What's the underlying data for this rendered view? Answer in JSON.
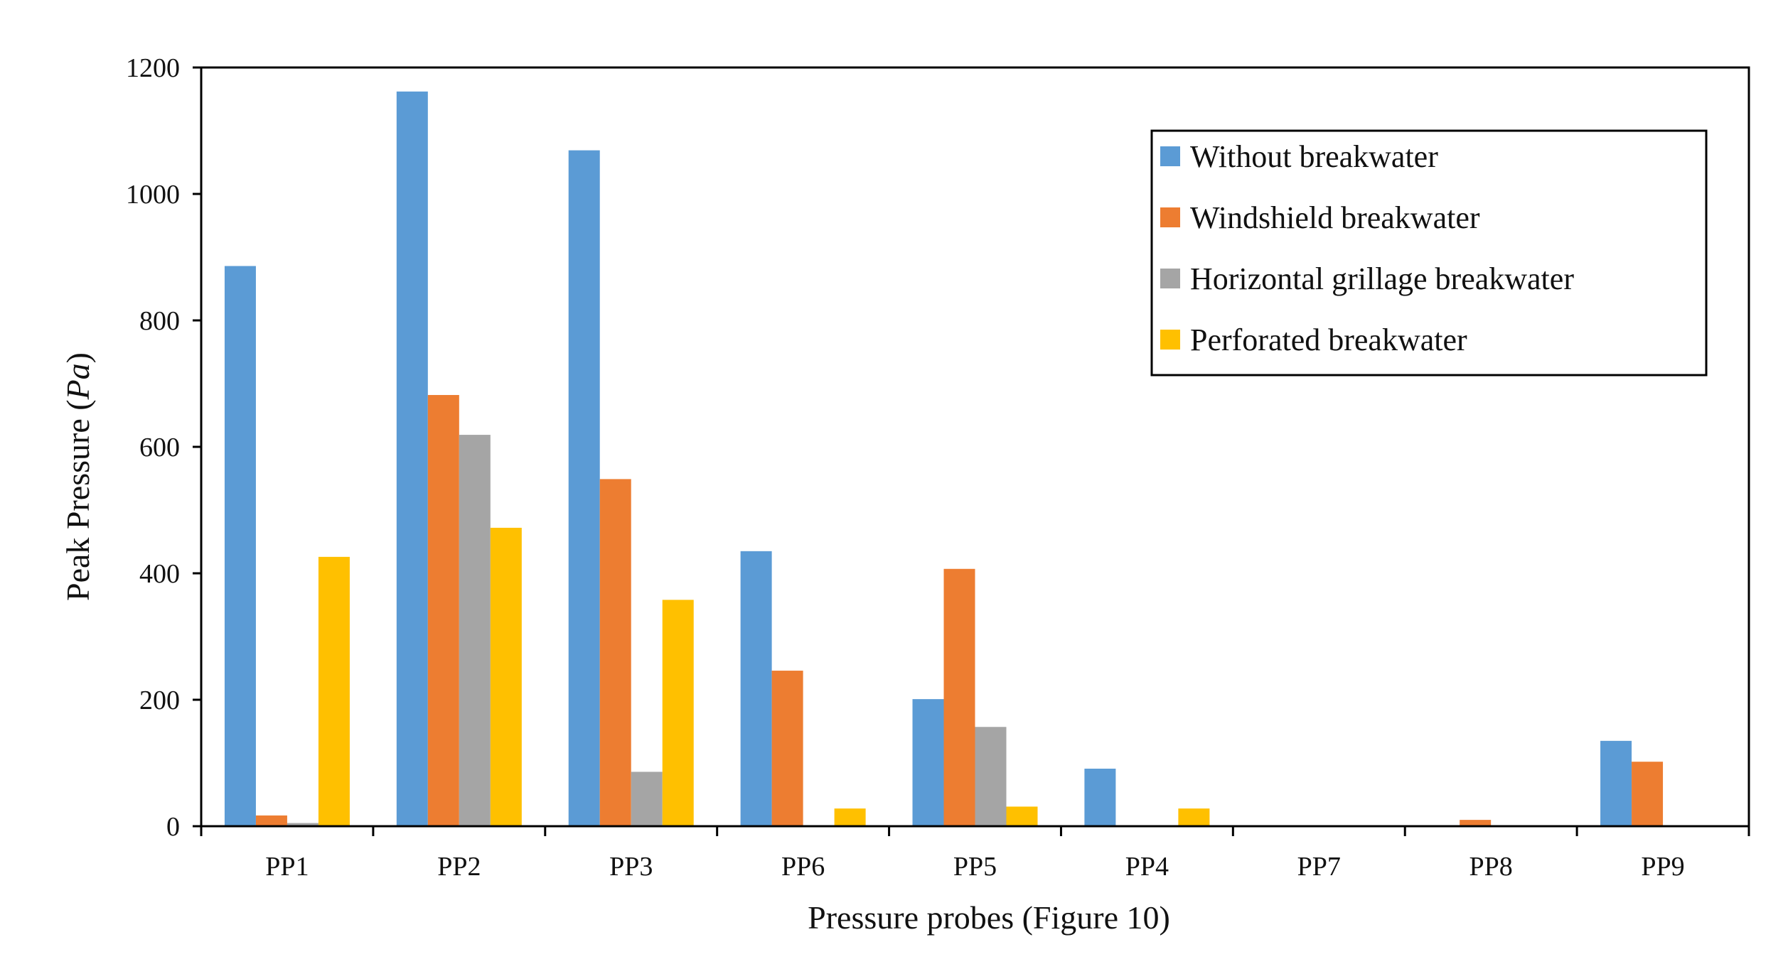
{
  "chart_data": {
    "type": "bar",
    "title": "",
    "xlabel": "Pressure probes (Figure 10)",
    "ylabel": {
      "prefix": "Peak Pressure (",
      "unit": "Pa",
      "suffix": ")"
    },
    "ylim": [
      0,
      1200
    ],
    "yticks": [
      0,
      200,
      400,
      600,
      800,
      1000,
      1200
    ],
    "grid": false,
    "legend_position": "top-right",
    "categories": [
      "PP1",
      "PP2",
      "PP3",
      "PP6",
      "PP5",
      "PP4",
      "PP7",
      "PP8",
      "PP9"
    ],
    "series": [
      {
        "name": "Without breakwater",
        "color": "#5B9BD5",
        "values": [
          886,
          1162,
          1069,
          435,
          201,
          91,
          0,
          0,
          135
        ]
      },
      {
        "name": "Windshield breakwater",
        "color": "#ED7D31",
        "values": [
          17,
          682,
          549,
          246,
          407,
          0,
          0,
          10,
          102
        ]
      },
      {
        "name": "Horizontal grillage breakwater",
        "color": "#A5A5A5",
        "values": [
          5,
          619,
          86,
          0,
          157,
          0,
          0,
          0,
          0
        ]
      },
      {
        "name": "Perforated breakwater",
        "color": "#FFC000",
        "values": [
          426,
          472,
          358,
          28,
          31,
          28,
          0,
          0,
          0
        ]
      }
    ]
  }
}
